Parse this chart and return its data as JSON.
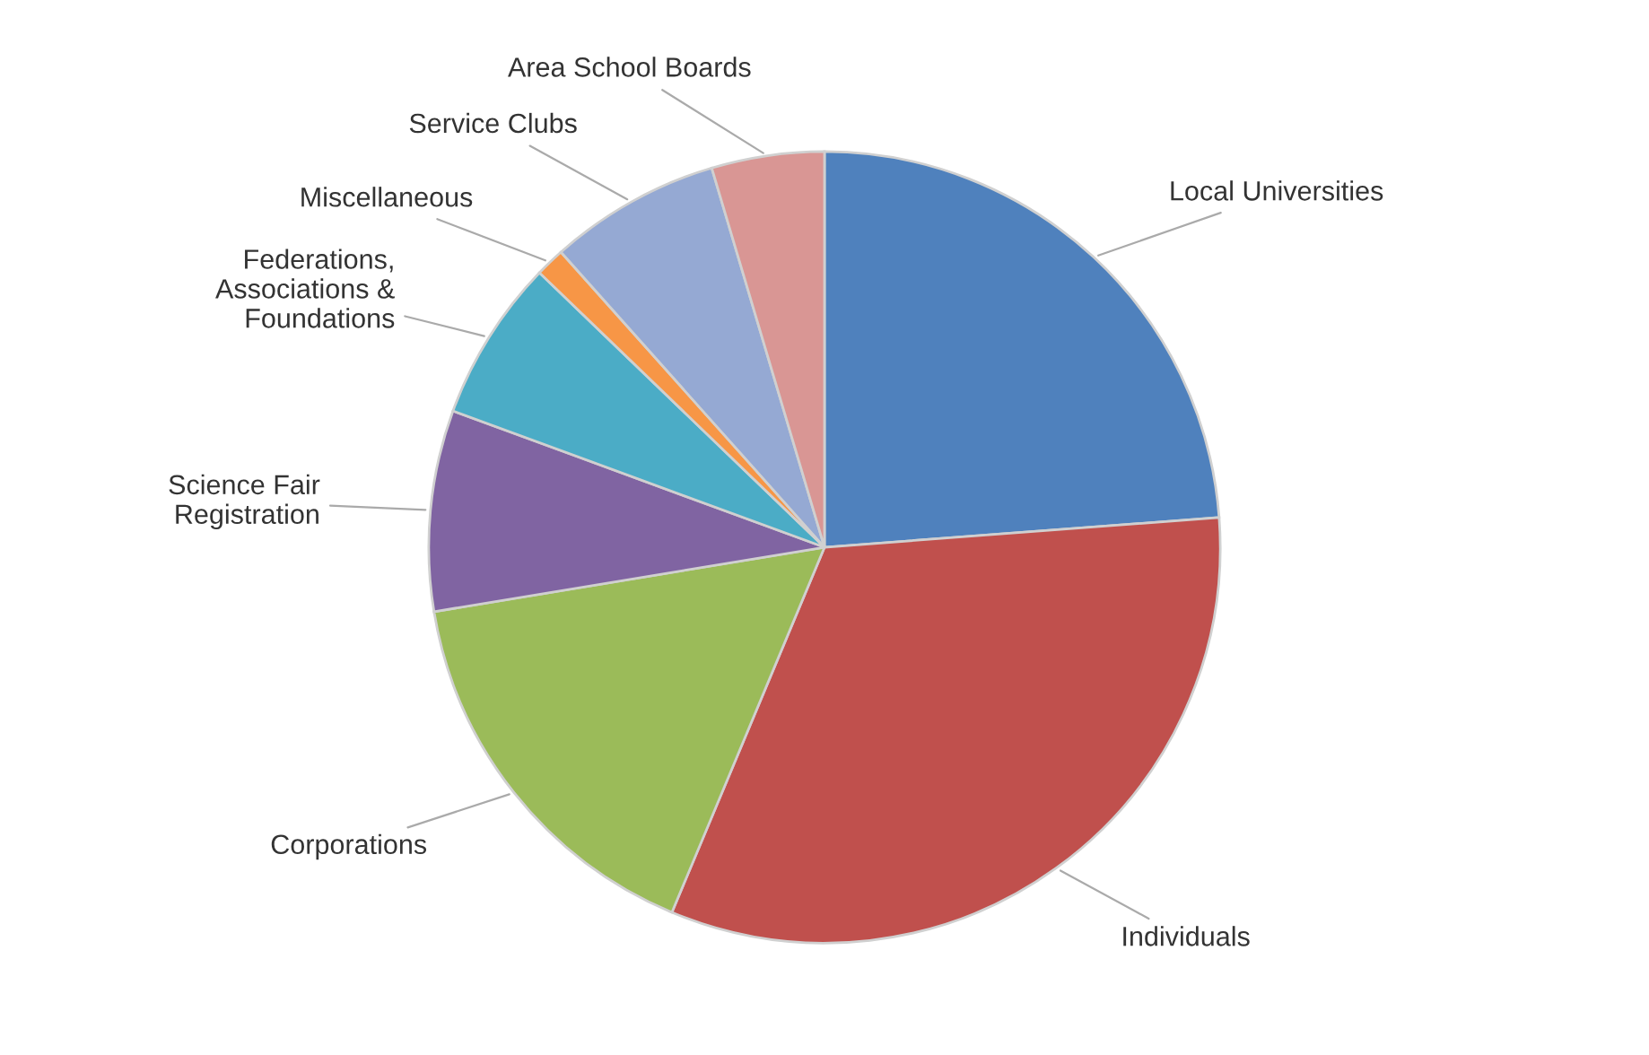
{
  "chart_data": {
    "type": "pie",
    "categories": [
      "Local Universities",
      "Individuals",
      "Corporations",
      "Science Fair\nRegistration",
      "Federations,\nAssociations &\nFoundations",
      "Miscellaneous",
      "Service Clubs",
      "Area School Boards"
    ],
    "values": [
      23.8,
      32.5,
      16.1,
      8.2,
      6.6,
      1.2,
      7.0,
      4.6
    ],
    "colors": [
      "#4f81bd",
      "#c0504d",
      "#9bbb59",
      "#8064a2",
      "#4bacc6",
      "#f79646",
      "#95a9d3",
      "#d99694"
    ],
    "legend": false
  }
}
